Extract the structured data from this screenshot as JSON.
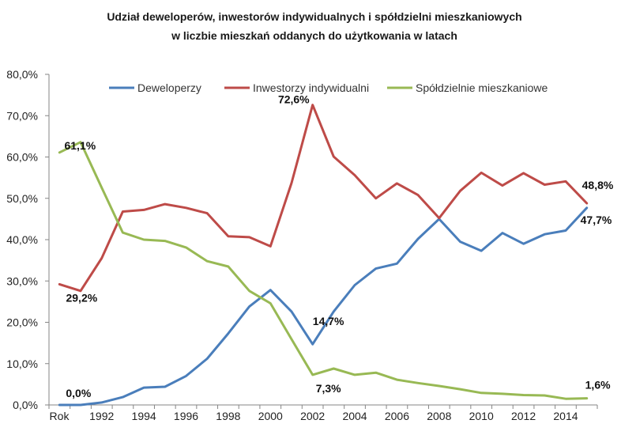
{
  "chart_data": {
    "type": "line",
    "title_line1": "Udział deweloperów, inwestorów indywidualnych  i spółdzielni mieszkaniowych",
    "title_line2": "w liczbie mieszkań oddanych  do użytkowania  w latach",
    "x_first_label": "Rok",
    "x": [
      1990,
      1991,
      1992,
      1993,
      1994,
      1995,
      1996,
      1997,
      1998,
      1999,
      2000,
      2001,
      2002,
      2003,
      2004,
      2005,
      2006,
      2007,
      2008,
      2009,
      2010,
      2011,
      2012,
      2013,
      2014,
      2015
    ],
    "x_tick_labels": [
      "1992",
      "1994",
      "1996",
      "1998",
      "2000",
      "2002",
      "2004",
      "2006",
      "2008",
      "2010",
      "2012",
      "2014"
    ],
    "x_tick_values": [
      1992,
      1994,
      1996,
      1998,
      2000,
      2002,
      2004,
      2006,
      2008,
      2010,
      2012,
      2014
    ],
    "ylim": [
      0,
      80
    ],
    "y_ticks": [
      0,
      10,
      20,
      30,
      40,
      50,
      60,
      70,
      80
    ],
    "y_tick_labels": [
      "0,0%",
      "10,0%",
      "20,0%",
      "30,0%",
      "40,0%",
      "50,0%",
      "60,0%",
      "70,0%",
      "80,0%"
    ],
    "grid": false,
    "legend_position": "top",
    "series": [
      {
        "name": "Deweloperzy",
        "color": "#4a7ebb",
        "values": [
          0.0,
          0.0,
          0.6,
          1.9,
          4.2,
          4.4,
          7.0,
          11.2,
          17.3,
          23.8,
          27.8,
          22.6,
          14.7,
          22.6,
          29.0,
          33.0,
          34.2,
          40.2,
          45.0,
          39.5,
          37.3,
          41.6,
          39.0,
          41.3,
          42.2,
          47.7
        ]
      },
      {
        "name": "Inwestorzy indywidualni",
        "color": "#be4b48",
        "values": [
          29.2,
          27.6,
          35.5,
          46.8,
          47.2,
          48.6,
          47.7,
          46.4,
          40.8,
          40.6,
          38.4,
          53.7,
          72.6,
          60.1,
          55.6,
          50.0,
          53.6,
          50.8,
          45.2,
          51.8,
          56.2,
          53.1,
          56.1,
          53.3,
          54.1,
          48.8
        ]
      },
      {
        "name": "Spółdzielnie mieszkaniowe",
        "color": "#98b954",
        "values": [
          61.1,
          63.6,
          52.6,
          41.7,
          40.0,
          39.7,
          38.1,
          34.8,
          33.5,
          27.6,
          24.6,
          15.9,
          7.3,
          8.8,
          7.3,
          7.8,
          6.1,
          5.3,
          4.6,
          3.8,
          2.9,
          2.7,
          2.4,
          2.3,
          1.5,
          1.6
        ]
      }
    ],
    "annotations": [
      {
        "text": "0,0%",
        "x": 1990,
        "y": 0.0,
        "series": 0
      },
      {
        "text": "14,7%",
        "x": 2002,
        "y": 14.7,
        "series": 0
      },
      {
        "text": "47,7%",
        "x": 2015,
        "y": 47.7,
        "series": 0
      },
      {
        "text": "29,2%",
        "x": 1990,
        "y": 29.2,
        "series": 1
      },
      {
        "text": "72,6%",
        "x": 2002,
        "y": 72.6,
        "series": 1
      },
      {
        "text": "48,8%",
        "x": 2015,
        "y": 48.8,
        "series": 1
      },
      {
        "text": "61,1%",
        "x": 1990,
        "y": 61.1,
        "series": 2
      },
      {
        "text": "7,3%",
        "x": 2002,
        "y": 7.3,
        "series": 2
      },
      {
        "text": "1,6%",
        "x": 2015,
        "y": 1.6,
        "series": 2
      }
    ]
  }
}
